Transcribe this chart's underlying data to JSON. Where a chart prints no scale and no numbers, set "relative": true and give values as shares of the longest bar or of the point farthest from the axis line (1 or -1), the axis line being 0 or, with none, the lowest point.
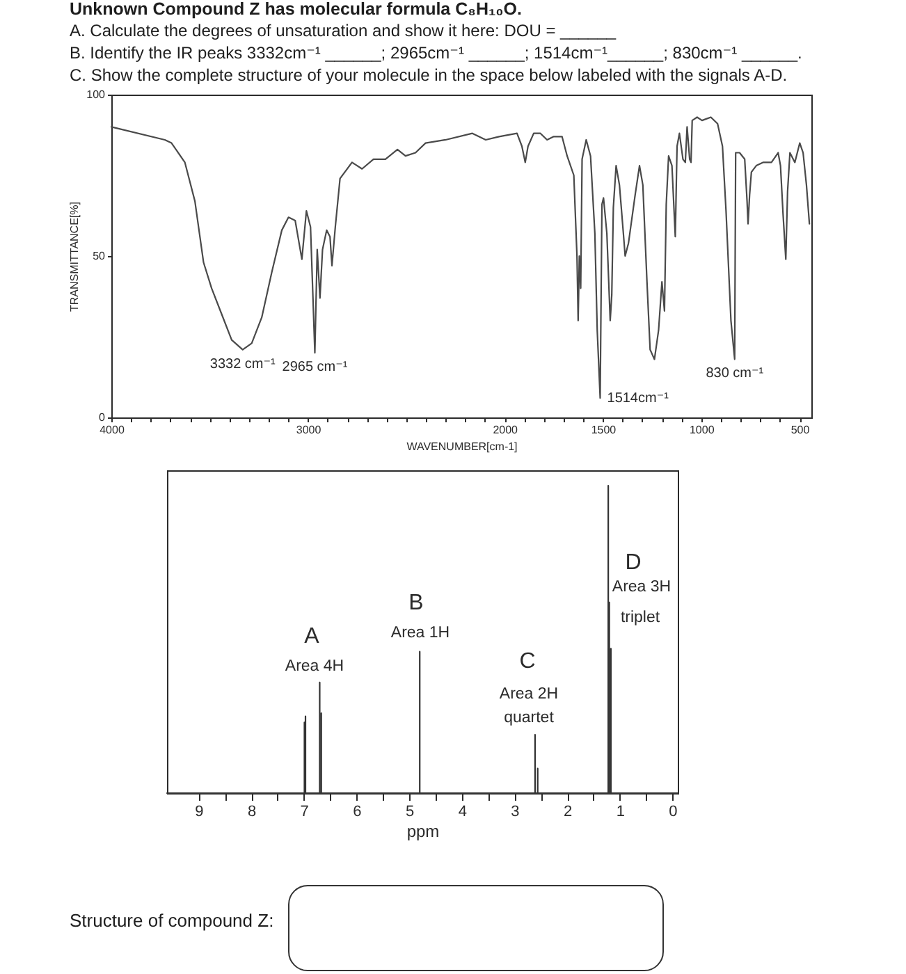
{
  "chart_data": [
    {
      "type": "line",
      "title": "Unknown Compound Z has molecular formula C₈H₁₀O.",
      "xlabel": "WAVENUMBER[cm-1]",
      "ylabel": "TRANSMITTANCE[%]",
      "annotations": [
        "A. Calculate the degrees of unsaturation and show it here: DOU = ______",
        "B. Identify the IR peaks 3332cm⁻¹ ______; 2965cm⁻¹ ______; 1514cm⁻¹______; 830cm⁻¹ ______.",
        "C. Show the complete structure of your molecule in the space below labeled with the signals A-D.",
        {
          "text": "3332 cm⁻¹",
          "x": 3332,
          "y": 21
        },
        {
          "text": "2965 cm⁻¹",
          "x": 2965,
          "y": 20
        },
        {
          "text": "1514cm⁻¹",
          "x": 1514,
          "y": 6
        },
        {
          "text": "830 cm⁻¹",
          "x": 830,
          "y": 18
        }
      ],
      "x": [
        4000,
        3728,
        3694,
        3626,
        3575,
        3531,
        3490,
        3439,
        3388,
        3332,
        3286,
        3235,
        3184,
        3133,
        3099,
        3065,
        3031,
        3008,
        2987,
        2965,
        2953,
        2939,
        2926,
        2905,
        2888,
        2878,
        2861,
        2837,
        2776,
        2725,
        2667,
        2606,
        2545,
        2504,
        2453,
        2402,
        2300,
        2164,
        2096,
        2028,
        1937,
        1912,
        1895,
        1881,
        1852,
        1818,
        1784,
        1750,
        1708,
        1682,
        1648,
        1632,
        1626,
        1620,
        1613,
        1606,
        1585,
        1563,
        1541,
        1529,
        1514,
        1505,
        1497,
        1480,
        1463,
        1455,
        1447,
        1433,
        1416,
        1396,
        1387,
        1370,
        1336,
        1314,
        1297,
        1276,
        1260,
        1238,
        1217,
        1200,
        1187,
        1178,
        1166,
        1149,
        1132,
        1123,
        1111,
        1093,
        1081,
        1072,
        1059,
        1052,
        1046,
        1021,
        996,
        951,
        917,
        892,
        874,
        849,
        830,
        825,
        805,
        779,
        767,
        762,
        754,
        745,
        720,
        686,
        643,
        609,
        597,
        584,
        570,
        561,
        549,
        524,
        499,
        482,
        465,
        450
      ],
      "values": [
        90,
        86,
        85,
        79,
        67,
        48,
        40,
        32,
        24,
        21,
        23,
        31,
        45,
        58,
        62,
        61,
        49,
        64,
        59,
        20,
        52,
        37,
        52,
        58,
        56,
        47,
        59,
        74,
        79,
        77,
        80,
        80,
        83,
        81,
        82,
        85,
        86,
        88,
        86,
        87,
        88,
        84,
        79,
        84,
        88,
        88,
        86,
        87,
        87,
        81,
        75,
        50,
        30,
        50,
        40,
        80,
        86,
        81,
        57,
        27,
        6,
        66,
        68,
        57,
        30,
        38,
        65,
        78,
        72,
        57,
        50,
        54,
        69,
        78,
        72,
        42,
        21,
        18,
        27,
        42,
        33,
        66,
        81,
        78,
        56,
        84,
        88,
        80,
        79,
        90,
        80,
        79,
        92,
        93,
        92,
        93,
        91,
        84,
        64,
        30,
        18,
        82,
        82,
        80,
        67,
        60,
        69,
        76,
        78,
        79,
        79,
        82,
        78,
        63,
        49,
        70,
        82,
        79,
        85,
        82,
        72,
        60
      ],
      "color": "#4a4a4a",
      "xlim": [
        4000,
        440
      ],
      "xticks": [
        4000,
        {
          "value": 3900,
          "label": null
        },
        {
          "value": 3800,
          "label": null
        },
        {
          "value": 3700,
          "label": null
        },
        {
          "value": 3600,
          "label": null
        },
        {
          "value": 3500,
          "label": null
        },
        {
          "value": 3400,
          "label": null
        },
        {
          "value": 3300,
          "label": null
        },
        {
          "value": 3200,
          "label": null
        },
        {
          "value": 3100,
          "label": null
        },
        3000,
        {
          "value": 2900,
          "label": null
        },
        {
          "value": 2800,
          "label": null
        },
        {
          "value": 2700,
          "label": null
        },
        {
          "value": 2600,
          "label": null
        },
        {
          "value": 2500,
          "label": null
        },
        {
          "value": 2400,
          "label": null
        },
        {
          "value": 2300,
          "label": null
        },
        {
          "value": 2200,
          "label": null
        },
        {
          "value": 2100,
          "label": null
        },
        2000,
        {
          "value": 1900,
          "label": null
        },
        {
          "value": 1800,
          "label": null
        },
        {
          "value": 1700,
          "label": null
        },
        {
          "value": 1600,
          "label": null
        },
        1500,
        {
          "value": 1400,
          "label": null
        },
        {
          "value": 1300,
          "label": null
        },
        {
          "value": 1200,
          "label": null
        },
        {
          "value": 1100,
          "label": null
        },
        1000,
        {
          "value": 900,
          "label": null
        },
        {
          "value": 800,
          "label": null
        },
        {
          "value": 700,
          "label": null
        },
        {
          "value": 600,
          "label": null
        },
        500
      ],
      "ylim": [
        0,
        100
      ],
      "yticks": [
        0,
        50,
        100
      ]
    },
    {
      "type": "line",
      "xlabel": "ppm",
      "relative": true,
      "annotations": [
        "A",
        "Area 4H",
        "B",
        "Area 1H",
        "C",
        "Area 2H",
        "quartet",
        "D",
        "Area 3H",
        "triplet",
        "Structure of compound Z:"
      ],
      "x": [
        9.6,
        6.99,
        6.99,
        6.99,
        6.97,
        6.97,
        6.97,
        6.7,
        6.7,
        6.7,
        6.67,
        6.67,
        6.67,
        4.8,
        4.8,
        4.8,
        2.61,
        2.61,
        2.61,
        2.56,
        2.56,
        2.56,
        1.22,
        1.22,
        1.22,
        1.2,
        1.2,
        1.2,
        1.17,
        1.17,
        1.17,
        -0.1
      ],
      "values": [
        0,
        0,
        0.23,
        0,
        0,
        0.25,
        0,
        0,
        0.36,
        0,
        0,
        0.26,
        0,
        0,
        0.46,
        0,
        0,
        0.19,
        0,
        0,
        0.08,
        0,
        0,
        1,
        0,
        0,
        0.62,
        0,
        0,
        0.47,
        0,
        0
      ],
      "color": "#333333",
      "xlim": [
        9.6,
        -0.1
      ],
      "xticks": [
        9,
        {
          "value": 8.5,
          "label": null
        },
        8,
        {
          "value": 7.5,
          "label": null
        },
        7,
        {
          "value": 6.5,
          "label": null
        },
        6,
        {
          "value": 5.5,
          "label": null
        },
        5,
        {
          "value": 4.5,
          "label": null
        },
        4,
        {
          "value": 3.5,
          "label": null
        },
        3,
        {
          "value": 2.5,
          "label": null
        },
        2,
        {
          "value": 1.5,
          "label": null
        },
        1,
        {
          "value": 0.5,
          "label": null
        },
        0
      ]
    }
  ]
}
